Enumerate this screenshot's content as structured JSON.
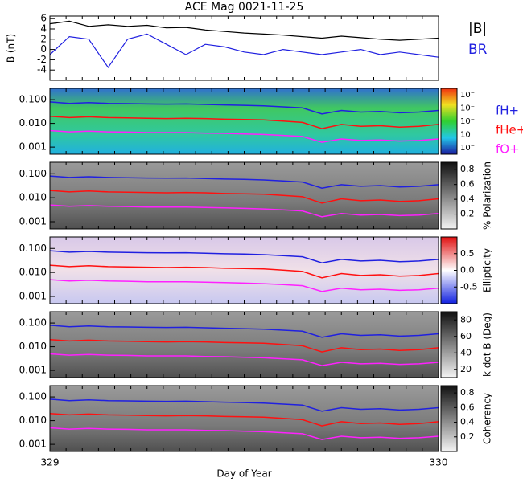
{
  "chart_data": [
    {
      "type": "line",
      "title": "ACE Mag 0021-11-25",
      "ylabel": "B (nT)",
      "ylim": [
        -6,
        6.5
      ],
      "yticks": [
        -4,
        -2,
        0,
        2,
        4,
        6
      ],
      "xlim": [
        329,
        330
      ],
      "x": [
        329,
        329.05,
        329.1,
        329.15,
        329.2,
        329.25,
        329.3,
        329.35,
        329.4,
        329.45,
        329.5,
        329.55,
        329.6,
        329.65,
        329.7,
        329.75,
        329.8,
        329.85,
        329.9,
        329.95,
        330
      ],
      "series": [
        {
          "name": "|B|",
          "color": "#000000",
          "values": [
            5,
            5.5,
            4.5,
            4.8,
            4.5,
            4.7,
            4.2,
            4.3,
            3.8,
            3.5,
            3.2,
            3,
            2.8,
            2.5,
            2.2,
            2.6,
            2.3,
            2,
            1.8,
            2,
            2.2
          ]
        },
        {
          "name": "BR",
          "color": "#2020e0",
          "values": [
            -1,
            2.5,
            2,
            -3.5,
            2,
            3,
            1,
            -1,
            1,
            0.5,
            -0.5,
            -1,
            0,
            -0.5,
            -1,
            -0.5,
            0,
            -1,
            -0.5,
            -1,
            -1.5
          ]
        }
      ]
    },
    {
      "type": "spectrogram",
      "colormap": "rainbow",
      "yscale": "log",
      "ylim": [
        0.0005,
        0.3
      ],
      "yticks": [
        {
          "value": 0.1,
          "label": "0.100"
        },
        {
          "value": 0.01,
          "label": "0.010"
        },
        {
          "value": 0.001,
          "label": "0.001"
        }
      ],
      "xlim": [
        329,
        330
      ],
      "colorbar_labels": [
        "10⁻",
        "10⁻",
        "10⁻",
        "10⁻",
        "10⁻"
      ],
      "x": [
        329,
        329.05,
        329.1,
        329.15,
        329.2,
        329.25,
        329.3,
        329.35,
        329.4,
        329.45,
        329.5,
        329.55,
        329.6,
        329.65,
        329.7,
        329.75,
        329.8,
        329.85,
        329.9,
        329.95,
        330
      ],
      "series": [
        {
          "name": "fH+",
          "color": "#2020e0",
          "values": [
            0.08,
            0.07,
            0.075,
            0.07,
            0.068,
            0.066,
            0.065,
            0.066,
            0.063,
            0.06,
            0.058,
            0.055,
            0.05,
            0.045,
            0.025,
            0.035,
            0.03,
            0.032,
            0.028,
            0.03,
            0.035
          ]
        },
        {
          "name": "fHe+",
          "color": "#ff1010",
          "values": [
            0.02,
            0.0175,
            0.019,
            0.0175,
            0.017,
            0.0165,
            0.016,
            0.0165,
            0.016,
            0.015,
            0.0145,
            0.014,
            0.0125,
            0.011,
            0.006,
            0.009,
            0.0075,
            0.008,
            0.007,
            0.0075,
            0.009
          ]
        },
        {
          "name": "fO+",
          "color": "#ff20ff",
          "values": [
            0.005,
            0.0044,
            0.0047,
            0.0044,
            0.0043,
            0.0041,
            0.0041,
            0.0041,
            0.0039,
            0.0038,
            0.0036,
            0.0034,
            0.0031,
            0.0028,
            0.0016,
            0.0022,
            0.0019,
            0.002,
            0.0018,
            0.0019,
            0.0022
          ]
        }
      ]
    },
    {
      "type": "spectrogram",
      "colormap": "gray",
      "yscale": "log",
      "ylim": [
        0.0005,
        0.3
      ],
      "yticks": [
        {
          "value": 0.1,
          "label": "0.100"
        },
        {
          "value": 0.01,
          "label": "0.010"
        },
        {
          "value": 0.001,
          "label": "0.001"
        }
      ],
      "xlim": [
        329,
        330
      ],
      "clabel": "% Polarization",
      "clim": [
        0,
        0.9
      ],
      "cticks": [
        0.2,
        0.4,
        0.6,
        0.8
      ],
      "x": [
        329,
        329.05,
        329.1,
        329.15,
        329.2,
        329.25,
        329.3,
        329.35,
        329.4,
        329.45,
        329.5,
        329.55,
        329.6,
        329.65,
        329.7,
        329.75,
        329.8,
        329.85,
        329.9,
        329.95,
        330
      ],
      "series": [
        {
          "color": "#2020e0",
          "values": [
            0.08,
            0.07,
            0.075,
            0.07,
            0.068,
            0.066,
            0.065,
            0.066,
            0.063,
            0.06,
            0.058,
            0.055,
            0.05,
            0.045,
            0.025,
            0.035,
            0.03,
            0.032,
            0.028,
            0.03,
            0.035
          ]
        },
        {
          "color": "#ff1010",
          "values": [
            0.02,
            0.0175,
            0.019,
            0.0175,
            0.017,
            0.0165,
            0.016,
            0.0165,
            0.016,
            0.015,
            0.0145,
            0.014,
            0.0125,
            0.011,
            0.006,
            0.009,
            0.0075,
            0.008,
            0.007,
            0.0075,
            0.009
          ]
        },
        {
          "color": "#ff20ff",
          "values": [
            0.005,
            0.0044,
            0.0047,
            0.0044,
            0.0043,
            0.0041,
            0.0041,
            0.0041,
            0.0039,
            0.0038,
            0.0036,
            0.0034,
            0.0031,
            0.0028,
            0.0016,
            0.0022,
            0.0019,
            0.002,
            0.0018,
            0.0019,
            0.0022
          ]
        }
      ]
    },
    {
      "type": "spectrogram",
      "colormap": "diverging",
      "yscale": "log",
      "ylim": [
        0.0005,
        0.3
      ],
      "yticks": [
        {
          "value": 0.1,
          "label": "0.100"
        },
        {
          "value": 0.01,
          "label": "0.010"
        },
        {
          "value": 0.001,
          "label": "0.001"
        }
      ],
      "xlim": [
        329,
        330
      ],
      "clabel": "Ellipticity",
      "clim": [
        -1,
        1
      ],
      "cticks": [
        -0.5,
        {
          "value": 0,
          "label": "0.0"
        },
        0.5
      ],
      "x": [
        329,
        329.05,
        329.1,
        329.15,
        329.2,
        329.25,
        329.3,
        329.35,
        329.4,
        329.45,
        329.5,
        329.55,
        329.6,
        329.65,
        329.7,
        329.75,
        329.8,
        329.85,
        329.9,
        329.95,
        330
      ],
      "series": [
        {
          "color": "#2020e0",
          "values": [
            0.08,
            0.07,
            0.075,
            0.07,
            0.068,
            0.066,
            0.065,
            0.066,
            0.063,
            0.06,
            0.058,
            0.055,
            0.05,
            0.045,
            0.025,
            0.035,
            0.03,
            0.032,
            0.028,
            0.03,
            0.035
          ]
        },
        {
          "color": "#ff1010",
          "values": [
            0.02,
            0.0175,
            0.019,
            0.0175,
            0.017,
            0.0165,
            0.016,
            0.0165,
            0.016,
            0.015,
            0.0145,
            0.014,
            0.0125,
            0.011,
            0.006,
            0.009,
            0.0075,
            0.008,
            0.007,
            0.0075,
            0.009
          ]
        },
        {
          "color": "#ff20ff",
          "values": [
            0.005,
            0.0044,
            0.0047,
            0.0044,
            0.0043,
            0.0041,
            0.0041,
            0.0041,
            0.0039,
            0.0038,
            0.0036,
            0.0034,
            0.0031,
            0.0028,
            0.0016,
            0.0022,
            0.0019,
            0.002,
            0.0018,
            0.0019,
            0.0022
          ]
        }
      ]
    },
    {
      "type": "spectrogram",
      "colormap": "gray",
      "yscale": "log",
      "ylim": [
        0.0005,
        0.3
      ],
      "yticks": [
        {
          "value": 0.1,
          "label": "0.100"
        },
        {
          "value": 0.01,
          "label": "0.010"
        },
        {
          "value": 0.001,
          "label": "0.001"
        }
      ],
      "xlim": [
        329,
        330
      ],
      "clabel": "k dot B (Deg)",
      "clim": [
        10,
        90
      ],
      "cticks": [
        20,
        40,
        60,
        80
      ],
      "x": [
        329,
        329.05,
        329.1,
        329.15,
        329.2,
        329.25,
        329.3,
        329.35,
        329.4,
        329.45,
        329.5,
        329.55,
        329.6,
        329.65,
        329.7,
        329.75,
        329.8,
        329.85,
        329.9,
        329.95,
        330
      ],
      "series": [
        {
          "color": "#2020e0",
          "values": [
            0.08,
            0.07,
            0.075,
            0.07,
            0.068,
            0.066,
            0.065,
            0.066,
            0.063,
            0.06,
            0.058,
            0.055,
            0.05,
            0.045,
            0.025,
            0.035,
            0.03,
            0.032,
            0.028,
            0.03,
            0.035
          ]
        },
        {
          "color": "#ff1010",
          "values": [
            0.02,
            0.0175,
            0.019,
            0.0175,
            0.017,
            0.0165,
            0.016,
            0.0165,
            0.016,
            0.015,
            0.0145,
            0.014,
            0.0125,
            0.011,
            0.006,
            0.009,
            0.0075,
            0.008,
            0.007,
            0.0075,
            0.009
          ]
        },
        {
          "color": "#ff20ff",
          "values": [
            0.005,
            0.0044,
            0.0047,
            0.0044,
            0.0043,
            0.0041,
            0.0041,
            0.0041,
            0.0039,
            0.0038,
            0.0036,
            0.0034,
            0.0031,
            0.0028,
            0.0016,
            0.0022,
            0.0019,
            0.002,
            0.0018,
            0.0019,
            0.0022
          ]
        }
      ]
    },
    {
      "type": "spectrogram",
      "colormap": "gray",
      "yscale": "log",
      "ylim": [
        0.0005,
        0.3
      ],
      "yticks": [
        {
          "value": 0.1,
          "label": "0.100"
        },
        {
          "value": 0.01,
          "label": "0.010"
        },
        {
          "value": 0.001,
          "label": "0.001"
        }
      ],
      "xlim": [
        329,
        330
      ],
      "xticks": [
        329,
        330
      ],
      "xlabel": "Day of Year",
      "clabel": "Coherency",
      "clim": [
        0,
        0.9
      ],
      "cticks": [
        0.2,
        0.4,
        0.6,
        0.8
      ],
      "x": [
        329,
        329.05,
        329.1,
        329.15,
        329.2,
        329.25,
        329.3,
        329.35,
        329.4,
        329.45,
        329.5,
        329.55,
        329.6,
        329.65,
        329.7,
        329.75,
        329.8,
        329.85,
        329.9,
        329.95,
        330
      ],
      "series": [
        {
          "color": "#2020e0",
          "values": [
            0.08,
            0.07,
            0.075,
            0.07,
            0.068,
            0.066,
            0.065,
            0.066,
            0.063,
            0.06,
            0.058,
            0.055,
            0.05,
            0.045,
            0.025,
            0.035,
            0.03,
            0.032,
            0.028,
            0.03,
            0.035
          ]
        },
        {
          "color": "#ff1010",
          "values": [
            0.02,
            0.0175,
            0.019,
            0.0175,
            0.017,
            0.0165,
            0.016,
            0.0165,
            0.016,
            0.015,
            0.0145,
            0.014,
            0.0125,
            0.011,
            0.006,
            0.009,
            0.0075,
            0.008,
            0.007,
            0.0075,
            0.009
          ]
        },
        {
          "color": "#ff20ff",
          "values": [
            0.005,
            0.0044,
            0.0047,
            0.0044,
            0.0043,
            0.0041,
            0.0041,
            0.0041,
            0.0039,
            0.0038,
            0.0036,
            0.0034,
            0.0031,
            0.0028,
            0.0016,
            0.0022,
            0.0019,
            0.002,
            0.0018,
            0.0019,
            0.0022
          ]
        }
      ]
    }
  ]
}
